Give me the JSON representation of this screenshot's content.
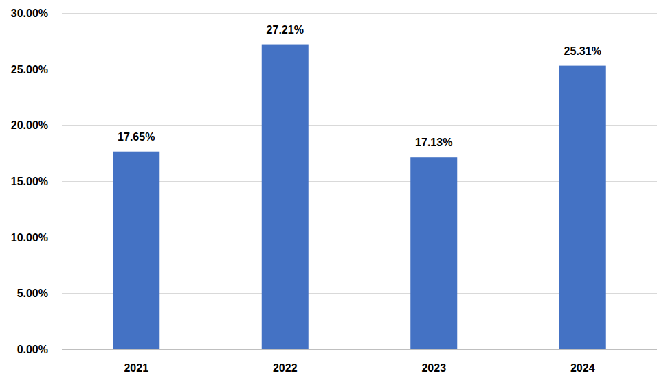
{
  "chart_data": {
    "type": "bar",
    "categories": [
      "2021",
      "2022",
      "2023",
      "2024"
    ],
    "values": [
      17.65,
      27.21,
      17.13,
      25.31
    ],
    "value_labels": [
      "17.65%",
      "27.21%",
      "17.13%",
      "25.31%"
    ],
    "color": "#4472c4",
    "ylim": [
      0,
      30
    ],
    "yticks": [
      {
        "value": 0,
        "label": "0.00%"
      },
      {
        "value": 5,
        "label": "5.00%"
      },
      {
        "value": 10,
        "label": "10.00%"
      },
      {
        "value": 15,
        "label": "15.00%"
      },
      {
        "value": 20,
        "label": "20.00%"
      },
      {
        "value": 25,
        "label": "25.00%"
      },
      {
        "value": 30,
        "label": "30.00%"
      }
    ],
    "grid": true,
    "data_labels": true
  }
}
